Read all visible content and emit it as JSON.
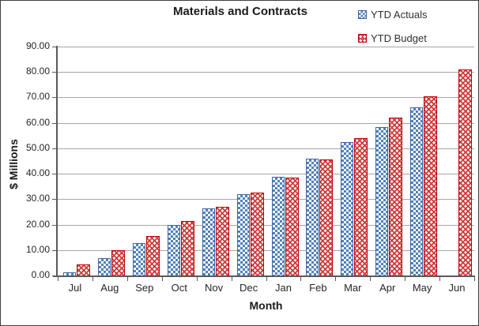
{
  "chart_data": {
    "type": "bar",
    "title": "Materials and Contracts",
    "xlabel": "Month",
    "ylabel": "$ Millions",
    "categories": [
      "Jul",
      "Aug",
      "Sep",
      "Oct",
      "Nov",
      "Dec",
      "Jan",
      "Feb",
      "Mar",
      "Apr",
      "May",
      "Jun"
    ],
    "series": [
      {
        "name": "YTD Actuals",
        "pattern": "checker",
        "fill_color": "#4f81bd",
        "border_color": "#3a67a5",
        "values": [
          1.2,
          6.7,
          12.8,
          20.0,
          26.5,
          32.0,
          38.9,
          46.0,
          52.3,
          58.3,
          66.0,
          null
        ]
      },
      {
        "name": "YTD Budget",
        "pattern": "weave",
        "fill_color": "#cc3b3b",
        "border_color": "#c00000",
        "values": [
          4.5,
          9.8,
          15.6,
          21.5,
          27.0,
          32.6,
          38.5,
          45.6,
          54.0,
          62.0,
          70.5,
          81.0
        ]
      }
    ],
    "ylim": [
      0,
      90
    ],
    "y_tick_step": 10,
    "y_tick_labels": [
      "0.00",
      "10.00",
      "20.00",
      "30.00",
      "40.00",
      "50.00",
      "60.00",
      "70.00",
      "80.00",
      "90.00"
    ],
    "grid": true,
    "legend_position": "top-right"
  },
  "colors": {
    "axis": "#595959",
    "gridline": "#a6a6a6",
    "tick_text": "#262626",
    "title_text": "#1a1a1a",
    "legend_text": "#303030"
  }
}
